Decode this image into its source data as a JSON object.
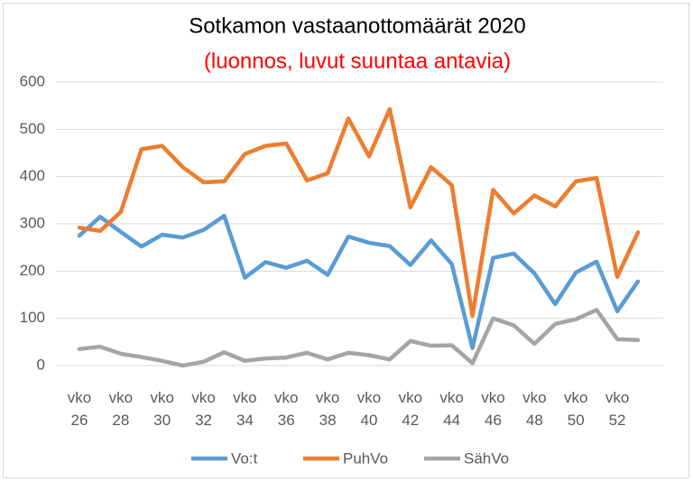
{
  "chart_data": {
    "type": "line",
    "title": "Sotkamon vastaanottomäärät 2020",
    "subtitle": "(luonnos, luvut suuntaa antavia)",
    "categories": [
      "vko 26",
      null,
      "vko 28",
      null,
      "vko 30",
      null,
      "vko 32",
      null,
      "vko 34",
      null,
      "vko 36",
      null,
      "vko 38",
      null,
      "vko 40",
      null,
      "vko 42",
      null,
      "vko 44",
      null,
      "vko 46",
      null,
      "vko 48",
      null,
      "vko 50",
      null,
      "vko 52",
      null
    ],
    "series": [
      {
        "name": "Vo:t",
        "color": "#5b9bd5",
        "values": [
          275,
          315,
          283,
          252,
          277,
          271,
          287,
          317,
          186,
          219,
          207,
          222,
          192,
          273,
          260,
          253,
          213,
          265,
          215,
          37,
          228,
          237,
          195,
          130,
          197,
          220,
          115,
          178
        ]
      },
      {
        "name": "PuhVo",
        "color": "#ed7d31",
        "values": [
          292,
          285,
          325,
          458,
          465,
          420,
          388,
          390,
          448,
          465,
          470,
          392,
          407,
          523,
          443,
          543,
          335,
          420,
          382,
          105,
          372,
          322,
          360,
          337,
          390,
          397,
          188,
          282
        ]
      },
      {
        "name": "SähVo",
        "color": "#a5a5a5",
        "values": [
          35,
          40,
          25,
          18,
          10,
          0,
          8,
          28,
          10,
          15,
          17,
          27,
          13,
          27,
          22,
          13,
          52,
          42,
          43,
          5,
          100,
          85,
          46,
          88,
          98,
          118,
          56,
          54
        ]
      }
    ],
    "ylim": [
      0,
      600
    ],
    "yticks": [
      0,
      100,
      200,
      300,
      400,
      500,
      600
    ],
    "grid": true,
    "legend": "bottom"
  }
}
